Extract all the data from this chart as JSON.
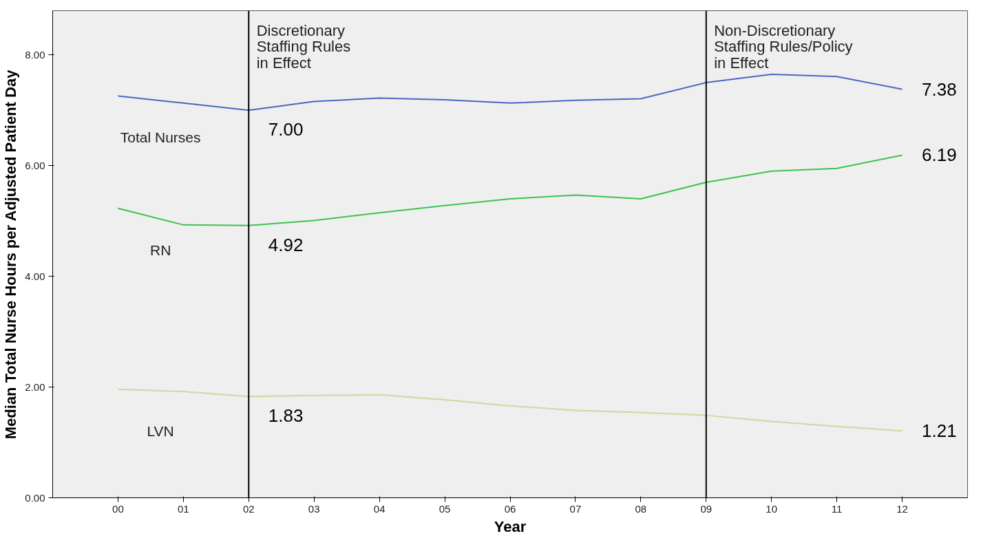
{
  "chart_data": {
    "type": "line",
    "xlabel": "Year",
    "ylabel": "Median Total Nurse Hours per Adjusted Patient Day",
    "categories": [
      "00",
      "01",
      "02",
      "03",
      "04",
      "05",
      "06",
      "07",
      "08",
      "09",
      "10",
      "11",
      "12"
    ],
    "ylim": [
      0,
      8.8
    ],
    "yticks": [
      {
        "value": 0,
        "label": "0.00"
      },
      {
        "value": 2,
        "label": "2.00"
      },
      {
        "value": 4,
        "label": "4.00"
      },
      {
        "value": 6,
        "label": "6.00"
      },
      {
        "value": 8,
        "label": "8.00"
      }
    ],
    "grid": false,
    "legend": false,
    "marker": "none",
    "line_style": "solid",
    "series": [
      {
        "name": "Total Nurses",
        "color": "#4a66c4",
        "values": [
          7.26,
          7.13,
          7.0,
          7.16,
          7.22,
          7.19,
          7.13,
          7.18,
          7.21,
          7.5,
          7.65,
          7.61,
          7.38
        ],
        "value_labels": [
          null,
          null,
          "7.00",
          null,
          null,
          null,
          null,
          null,
          null,
          null,
          null,
          null,
          "7.38"
        ]
      },
      {
        "name": "RN",
        "color": "#3cc24f",
        "values": [
          5.23,
          4.93,
          4.92,
          5.01,
          5.15,
          5.28,
          5.4,
          5.47,
          5.4,
          5.7,
          5.9,
          5.95,
          6.19
        ],
        "value_labels": [
          null,
          null,
          "4.92",
          null,
          null,
          null,
          null,
          null,
          null,
          null,
          null,
          null,
          "6.19"
        ]
      },
      {
        "name": "LVN",
        "color": "#d8d3a0",
        "values": [
          1.96,
          1.92,
          1.83,
          1.85,
          1.86,
          1.77,
          1.66,
          1.58,
          1.54,
          1.49,
          1.38,
          1.29,
          1.21
        ],
        "value_labels": [
          null,
          null,
          "1.83",
          null,
          null,
          null,
          null,
          null,
          null,
          null,
          null,
          null,
          "1.21"
        ]
      }
    ],
    "ref_lines": [
      {
        "axis": "x",
        "value": "02",
        "label": "Discretionary\nStaffing Rules\nin Effect",
        "color": "#000000"
      },
      {
        "axis": "x",
        "value": "09",
        "label": "Non-Discretionary\nStaffing Rules/Policy\nin Effect",
        "color": "#000000"
      }
    ]
  }
}
